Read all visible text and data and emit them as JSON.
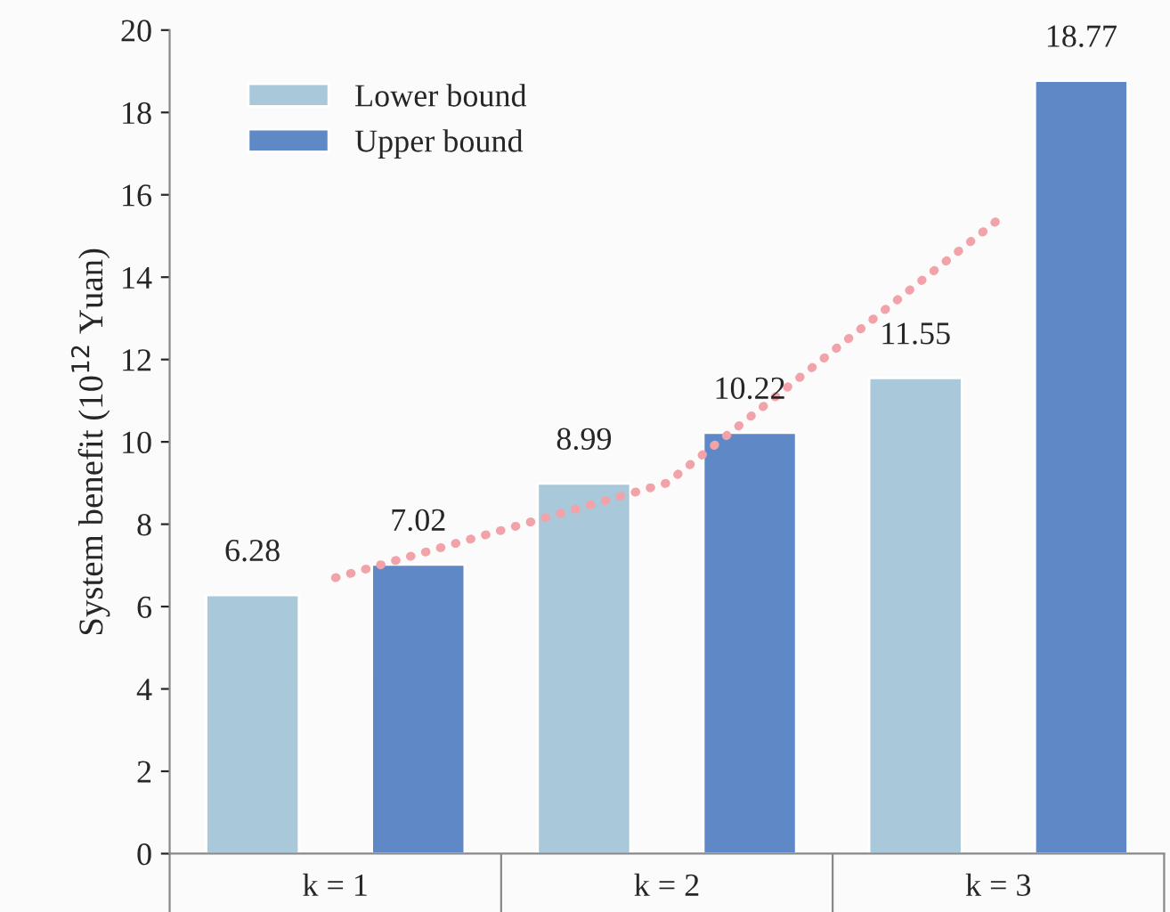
{
  "chart_data": {
    "type": "bar",
    "categories": [
      "k = 1",
      "k = 2",
      "k = 3"
    ],
    "ylabel": "System benefit (10$^{12}$ Yuan)",
    "series": [
      {
        "name": "Lower bound",
        "color": "#a9c8d9",
        "values": [
          6.28,
          8.99,
          11.55
        ],
        "value_labels": [
          "6.28",
          "8.99",
          "11.55"
        ]
      },
      {
        "name": "Upper bound",
        "color": "#5e88c6",
        "values": [
          7.02,
          10.22,
          18.77
        ],
        "value_labels": [
          "7.02",
          "10.22",
          "18.77"
        ]
      },
      {
        "type": "line",
        "color": "#f2a3aa",
        "line_style": "dotted",
        "values": [
          6.7,
          9.0,
          15.4
        ]
      }
    ],
    "ylim": [
      0,
      20
    ],
    "yticks": [
      0,
      2,
      4,
      6,
      8,
      10,
      12,
      14,
      16,
      18,
      20
    ],
    "legend": "top left",
    "grid": false
  }
}
